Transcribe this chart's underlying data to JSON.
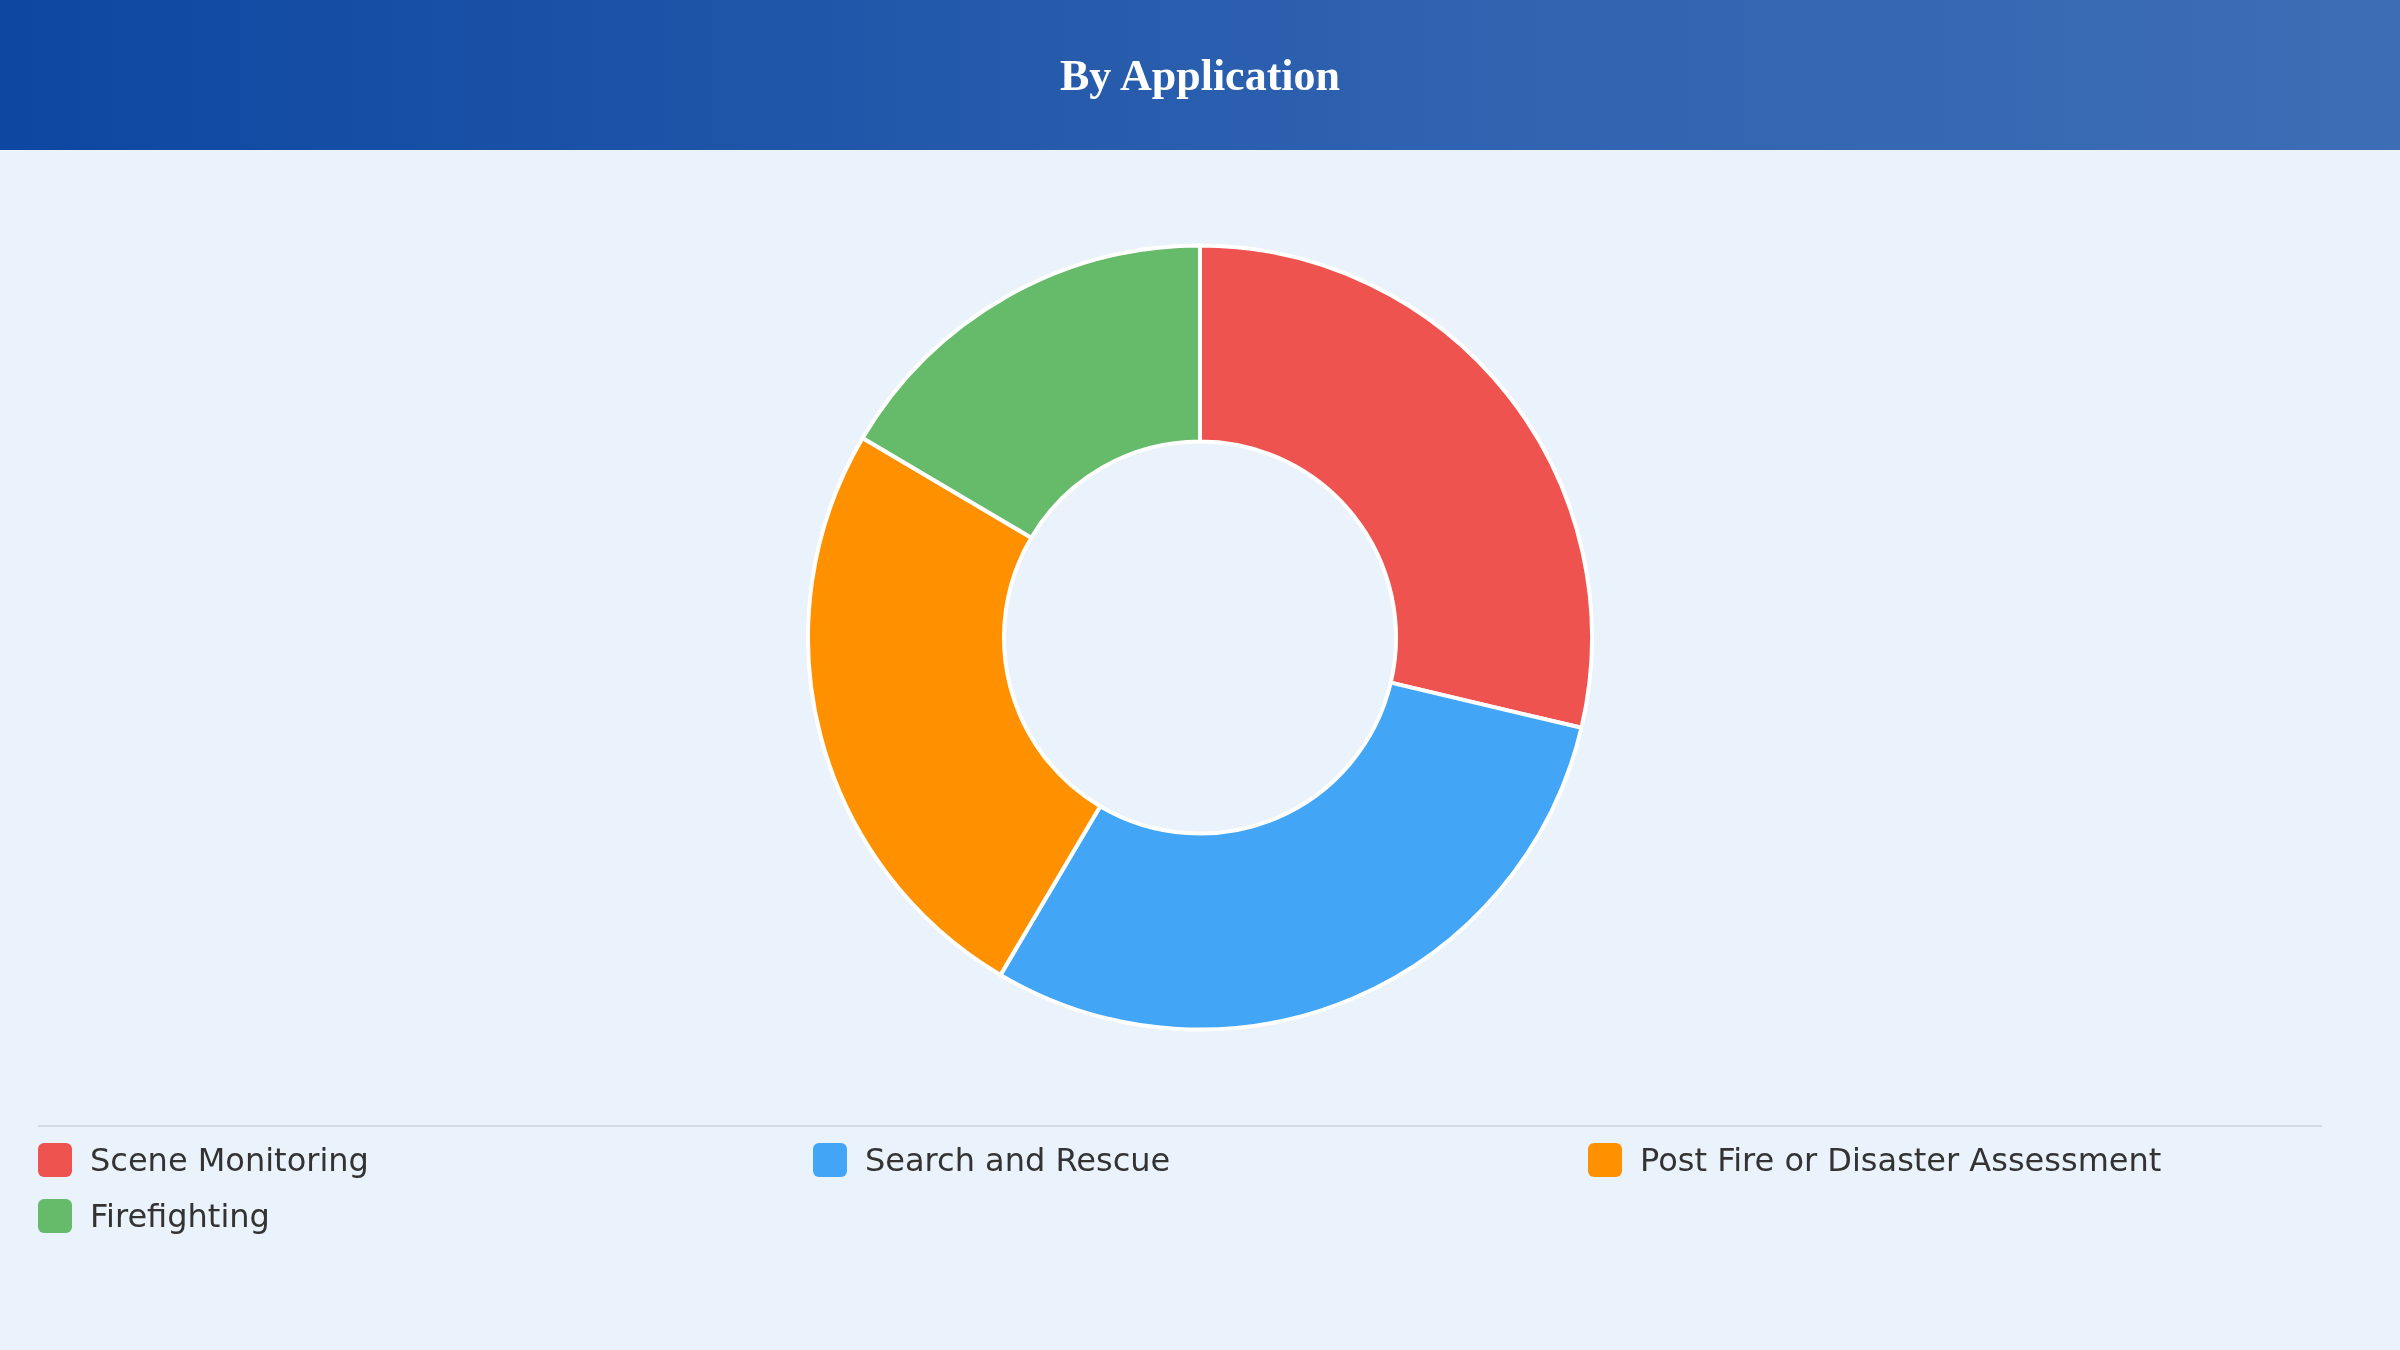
{
  "chart_data": {
    "type": "donut",
    "title": "By Application",
    "categories": [
      "Scene Monitoring",
      "Search and Rescue",
      "Post Fire or Disaster Assessment",
      "Firefighting"
    ],
    "values": [
      28.7,
      29.8,
      25.0,
      16.5
    ],
    "colors": [
      "#ef5350",
      "#42a5f5",
      "#ff9100",
      "#66bb6a"
    ],
    "legend": "bottom"
  }
}
